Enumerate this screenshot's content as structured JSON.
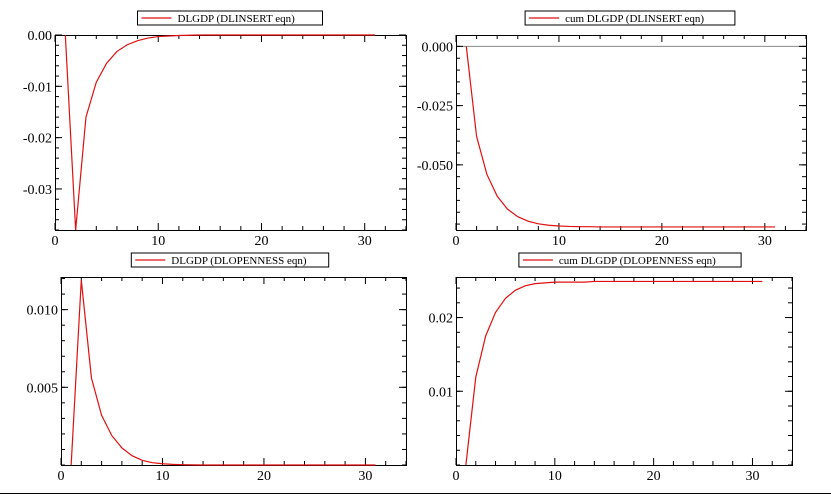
{
  "chart_data": [
    {
      "type": "line",
      "legend": "DLGDP (DLINSERT eqn)",
      "xlim": [
        0,
        34
      ],
      "ylim": [
        -0.038,
        0.0
      ],
      "xticks": [
        0,
        10,
        20,
        30
      ],
      "yticks": [
        0.0,
        -0.01,
        -0.02,
        -0.03
      ],
      "xtick_labels": [
        "0",
        "10",
        "20",
        "30"
      ],
      "ytick_labels": [
        "0.00",
        "-0.01",
        "-0.02",
        "-0.03"
      ],
      "zero_line": false,
      "series": [
        {
          "color": "#e01010",
          "x": [
            1,
            2,
            3,
            4,
            5,
            6,
            7,
            8,
            9,
            10,
            11,
            12,
            13,
            14,
            15,
            16,
            17,
            18,
            19,
            20,
            21,
            22,
            23,
            24,
            25,
            26,
            27,
            28,
            29,
            30,
            31
          ],
          "y": [
            0.0,
            -0.038,
            -0.016,
            -0.0092,
            -0.0055,
            -0.0032,
            -0.0019,
            -0.0011,
            -0.0006,
            -0.0003,
            -0.0002,
            -0.0001,
            -5e-05,
            0,
            0,
            0,
            0,
            0,
            0,
            0,
            0,
            0,
            0,
            0,
            0,
            0,
            0,
            0,
            0,
            0,
            0
          ]
        }
      ]
    },
    {
      "type": "line",
      "legend": "cum DLGDP (DLINSERT eqn)",
      "xlim": [
        0,
        34
      ],
      "ylim": [
        -0.0775,
        0.0048
      ],
      "xticks": [
        0,
        10,
        20,
        30
      ],
      "yticks": [
        0.0,
        -0.025,
        -0.05
      ],
      "xtick_labels": [
        "0",
        "10",
        "20",
        "30"
      ],
      "ytick_labels": [
        "0.000",
        "-0.025",
        "-0.050"
      ],
      "zero_line": true,
      "series": [
        {
          "color": "#e01010",
          "x": [
            1,
            2,
            3,
            4,
            5,
            6,
            7,
            8,
            9,
            10,
            11,
            12,
            13,
            14,
            15,
            16,
            17,
            18,
            19,
            20,
            21,
            22,
            23,
            24,
            25,
            26,
            27,
            28,
            29,
            30,
            31
          ],
          "y": [
            0.0,
            -0.038,
            -0.054,
            -0.0632,
            -0.0687,
            -0.0719,
            -0.0738,
            -0.0749,
            -0.0755,
            -0.0758,
            -0.076,
            -0.0761,
            -0.0761,
            -0.0762,
            -0.0762,
            -0.0762,
            -0.0762,
            -0.0762,
            -0.0762,
            -0.0762,
            -0.0762,
            -0.0762,
            -0.0762,
            -0.0762,
            -0.0762,
            -0.0762,
            -0.0762,
            -0.0762,
            -0.0762,
            -0.0762,
            -0.0762
          ]
        }
      ]
    },
    {
      "type": "line",
      "legend": "DLGDP (DLOPENNESS eqn)",
      "xlim": [
        0,
        34
      ],
      "ylim": [
        0.0,
        0.0121
      ],
      "xticks": [
        0,
        10,
        20,
        30
      ],
      "yticks": [
        0.01,
        0.005
      ],
      "xtick_labels": [
        "0",
        "10",
        "20",
        "30"
      ],
      "ytick_labels": [
        "0.010",
        "0.005"
      ],
      "zero_line": false,
      "series": [
        {
          "color": "#e01010",
          "x": [
            1,
            2,
            3,
            4,
            5,
            6,
            7,
            8,
            9,
            10,
            11,
            12,
            13,
            14,
            15,
            16,
            17,
            18,
            19,
            20,
            21,
            22,
            23,
            24,
            25,
            26,
            27,
            28,
            29,
            30,
            31
          ],
          "y": [
            0.0,
            0.0119,
            0.0056,
            0.0032,
            0.0019,
            0.0011,
            0.0006,
            0.0003,
            0.00015,
            8e-05,
            4e-05,
            2e-05,
            1e-05,
            0,
            0,
            0,
            0,
            0,
            0,
            0,
            0,
            0,
            0,
            0,
            0,
            0,
            0,
            0,
            0,
            0,
            0
          ]
        }
      ]
    },
    {
      "type": "line",
      "legend": "cum DLGDP (DLOPENNESS eqn)",
      "xlim": [
        0,
        34
      ],
      "ylim": [
        0.0,
        0.0255
      ],
      "xticks": [
        0,
        10,
        20,
        30
      ],
      "yticks": [
        0.02,
        0.01
      ],
      "xtick_labels": [
        "0",
        "10",
        "20",
        "30"
      ],
      "ytick_labels": [
        "0.02",
        "0.01"
      ],
      "zero_line": false,
      "series": [
        {
          "color": "#e01010",
          "x": [
            1,
            2,
            3,
            4,
            5,
            6,
            7,
            8,
            9,
            10,
            11,
            12,
            13,
            14,
            15,
            16,
            17,
            18,
            19,
            20,
            21,
            22,
            23,
            24,
            25,
            26,
            27,
            28,
            29,
            30,
            31
          ],
          "y": [
            0.0,
            0.0119,
            0.0175,
            0.0207,
            0.0226,
            0.0237,
            0.0243,
            0.0246,
            0.0247,
            0.0248,
            0.0248,
            0.0248,
            0.0248,
            0.0249,
            0.0249,
            0.0249,
            0.0249,
            0.0249,
            0.0249,
            0.0249,
            0.0249,
            0.0249,
            0.0249,
            0.0249,
            0.0249,
            0.0249,
            0.0249,
            0.0249,
            0.0249,
            0.0249,
            0.0249
          ]
        }
      ]
    }
  ]
}
